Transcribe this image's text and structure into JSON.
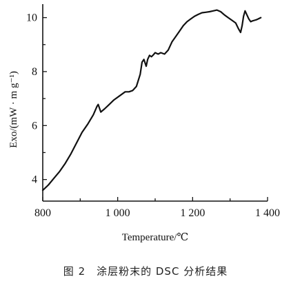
{
  "caption": "图 2　涂层粉末的 DSC 分析结果",
  "chart_data": {
    "type": "line",
    "xlabel": "Temperature/℃",
    "ylabel": "Exo/(mW · m g⁻¹)",
    "xlim": [
      800,
      1400
    ],
    "ylim": [
      3.2,
      10.5
    ],
    "xticks": [
      800,
      1000,
      1200,
      1400
    ],
    "xtick_labels": [
      "800",
      "1 000",
      "1 200",
      "1 400"
    ],
    "yticks": [
      4,
      6,
      8,
      10
    ],
    "ytick_labels": [
      "4",
      "6",
      "8",
      "10"
    ],
    "grid": false,
    "series": [
      {
        "color": "#111111",
        "x": [
          800,
          815,
          830,
          845,
          860,
          875,
          890,
          905,
          920,
          935,
          945,
          948,
          955,
          965,
          975,
          990,
          1005,
          1020,
          1030,
          1040,
          1050,
          1060,
          1065,
          1070,
          1076,
          1080,
          1085,
          1090,
          1095,
          1100,
          1108,
          1115,
          1125,
          1135,
          1145,
          1155,
          1165,
          1175,
          1185,
          1195,
          1205,
          1215,
          1225,
          1235,
          1245,
          1255,
          1265,
          1275,
          1285,
          1295,
          1305,
          1315,
          1322,
          1328,
          1332,
          1336,
          1340,
          1345,
          1350,
          1355,
          1360,
          1365,
          1370,
          1375,
          1382
        ],
        "y": [
          3.6,
          3.8,
          4.05,
          4.3,
          4.6,
          4.95,
          5.35,
          5.75,
          6.05,
          6.4,
          6.72,
          6.78,
          6.5,
          6.62,
          6.75,
          6.95,
          7.1,
          7.25,
          7.25,
          7.3,
          7.45,
          7.9,
          8.35,
          8.45,
          8.2,
          8.45,
          8.6,
          8.55,
          8.62,
          8.7,
          8.65,
          8.7,
          8.65,
          8.8,
          9.1,
          9.3,
          9.5,
          9.7,
          9.85,
          9.95,
          10.05,
          10.12,
          10.18,
          10.2,
          10.22,
          10.25,
          10.28,
          10.22,
          10.1,
          10.0,
          9.9,
          9.8,
          9.6,
          9.45,
          9.7,
          10.05,
          10.25,
          10.1,
          9.95,
          9.85,
          9.88,
          9.9,
          9.92,
          9.95,
          10.0
        ]
      }
    ]
  }
}
